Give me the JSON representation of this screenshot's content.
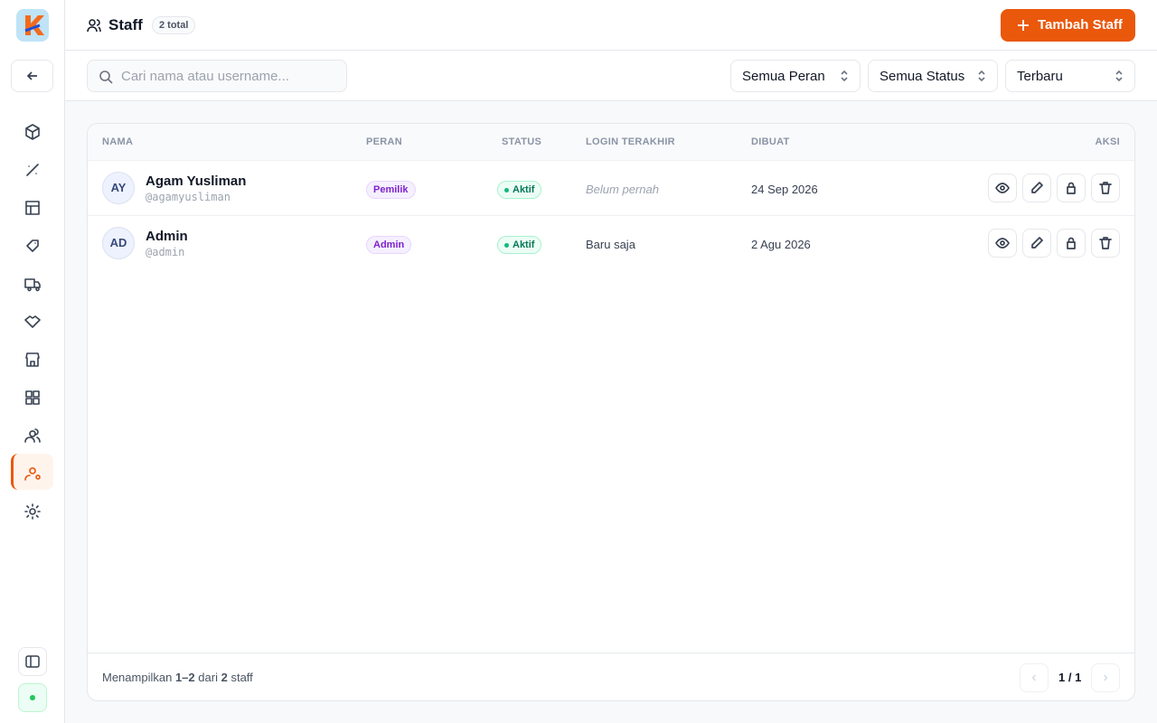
{
  "header": {
    "title": "Staff",
    "count": "2 total",
    "add_button": "Tambah Staff"
  },
  "filters": {
    "search_placeholder": "Cari nama atau username...",
    "role": "Semua Peran",
    "status": "Semua Status",
    "sort": "Terbaru"
  },
  "table": {
    "columns": [
      "NAMA",
      "PERAN",
      "STATUS",
      "LOGIN TERAKHIR",
      "DIBUAT",
      "AKSI"
    ],
    "rows": [
      {
        "initials": "AY",
        "name": "Agam Yusliman",
        "username": "@agamyusliman",
        "role": "Pemilik",
        "status": "Aktif",
        "last_login": "Belum pernah",
        "created": "24 Sep 2026"
      },
      {
        "initials": "AD",
        "name": "Admin",
        "username": "@admin",
        "role": "Admin",
        "status": "Aktif",
        "last_login": "Baru saja",
        "created": "2 Agu 2026"
      }
    ]
  },
  "footer": {
    "prefix": "Menampilkan",
    "range": "1–2",
    "middle": "dari",
    "total": "2",
    "suffix": "staff",
    "page": "1 / 1"
  }
}
